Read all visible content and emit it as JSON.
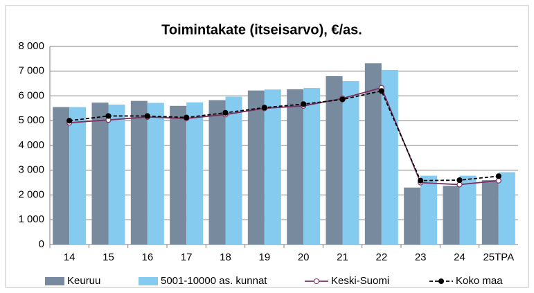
{
  "chart_data": {
    "type": "bar",
    "title": "Toimintakate (itseisarvo), €/as.",
    "categories": [
      "14",
      "15",
      "16",
      "17",
      "18",
      "19",
      "20",
      "21",
      "22",
      "23",
      "24",
      "25TPA"
    ],
    "series": [
      {
        "name": "Keuruu",
        "type": "bar",
        "color": "#778a9e",
        "values": [
          5550,
          5730,
          5800,
          5600,
          5830,
          6220,
          6270,
          6800,
          7320,
          2300,
          2370,
          2600
        ]
      },
      {
        "name": "5001-10000 as. kunnat",
        "type": "bar",
        "color": "#85cbf0",
        "values": [
          5550,
          5650,
          5720,
          5740,
          5970,
          6260,
          6320,
          6600,
          7050,
          2780,
          2780,
          2920
        ]
      },
      {
        "name": "Keski-Suomi",
        "type": "line",
        "color": "#7b2d5e",
        "marker_fill": "#ffffff",
        "dashed": false,
        "values": [
          4920,
          5030,
          5150,
          5090,
          5250,
          5500,
          5600,
          5900,
          6330,
          2500,
          2420,
          2580
        ]
      },
      {
        "name": "Koko maa",
        "type": "line",
        "color": "#000000",
        "marker_fill": "#000000",
        "dashed": true,
        "values": [
          5000,
          5190,
          5190,
          5130,
          5320,
          5530,
          5670,
          5860,
          6200,
          2580,
          2600,
          2760
        ]
      }
    ],
    "ylim": [
      0,
      8000
    ],
    "yticks": [
      0,
      {
        "value": 1000,
        "label": "1 000"
      },
      {
        "value": 2000,
        "label": "2 000"
      },
      {
        "value": 3000,
        "label": "3 000"
      },
      {
        "value": 4000,
        "label": "4 000"
      },
      {
        "value": 5000,
        "label": "5 000"
      },
      {
        "value": 6000,
        "label": "6 000"
      },
      {
        "value": 7000,
        "label": "7 000"
      },
      {
        "value": 8000,
        "label": "8 000"
      }
    ],
    "grid": true,
    "legend": "bottom"
  }
}
